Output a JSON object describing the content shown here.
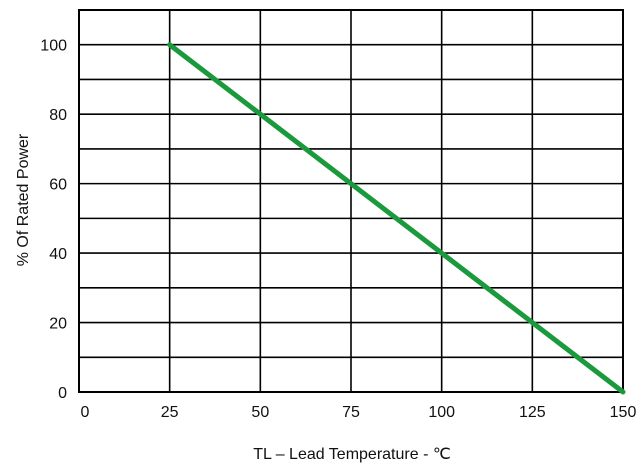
{
  "chart_data": {
    "type": "line",
    "title": "",
    "xlabel": "TL – Lead Temperature - ℃",
    "ylabel": "% Of Rated Power",
    "xlim": [
      0,
      150
    ],
    "ylim": [
      0,
      110
    ],
    "xticks": [
      0,
      25,
      50,
      75,
      100,
      125,
      150
    ],
    "yticks": [
      0,
      20,
      40,
      60,
      80,
      100
    ],
    "x_tick_labels": [
      "0",
      "25",
      "50",
      "75",
      "100",
      "125",
      "150"
    ],
    "y_tick_labels": [
      "0",
      "20",
      "40",
      "60",
      "80",
      "100"
    ],
    "grid": true,
    "series": [
      {
        "x": [
          25,
          150
        ],
        "y": [
          100,
          0
        ],
        "color": "#1a9a3c"
      }
    ]
  }
}
